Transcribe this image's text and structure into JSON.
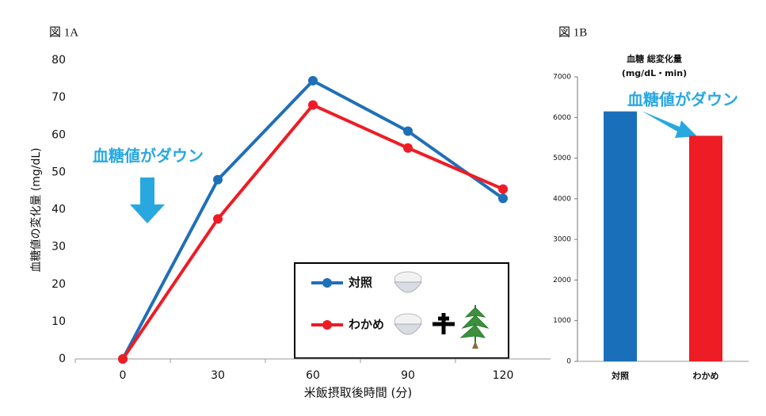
{
  "chart_data": [
    {
      "type": "line",
      "title": "図 1A",
      "categories": [
        "0",
        "30",
        "60",
        "90",
        "120"
      ],
      "series": [
        {
          "name": "対照",
          "color": "#1f6fb8",
          "values": [
            0,
            48,
            74.5,
            61,
            43
          ]
        },
        {
          "name": "わかめ",
          "color": "#ee1c25",
          "values": [
            0,
            37.5,
            68,
            56.5,
            45.5
          ]
        }
      ],
      "ylim": [
        0,
        80
      ],
      "yticks": [
        0,
        10,
        20,
        30,
        40,
        50,
        60,
        70,
        80
      ],
      "ylabel": "血糖値の変化量 (mg/dL)",
      "xlabel": "米飯摂取後時間 (分)",
      "annotation": "血糖値がダウン"
    },
    {
      "type": "bar",
      "title": "図 1B",
      "subtitle": "血糖 総変化量",
      "unit_label": "(mg/dL・min)",
      "categories": [
        "対照",
        "わかめ"
      ],
      "values": [
        6150,
        5550
      ],
      "colors": [
        "#1a6fba",
        "#ee1c25"
      ],
      "ylim": [
        0,
        7000
      ],
      "yticks": [
        0,
        1000,
        2000,
        3000,
        4000,
        5000,
        6000,
        7000
      ],
      "annotation": "血糖値がダウン"
    }
  ]
}
